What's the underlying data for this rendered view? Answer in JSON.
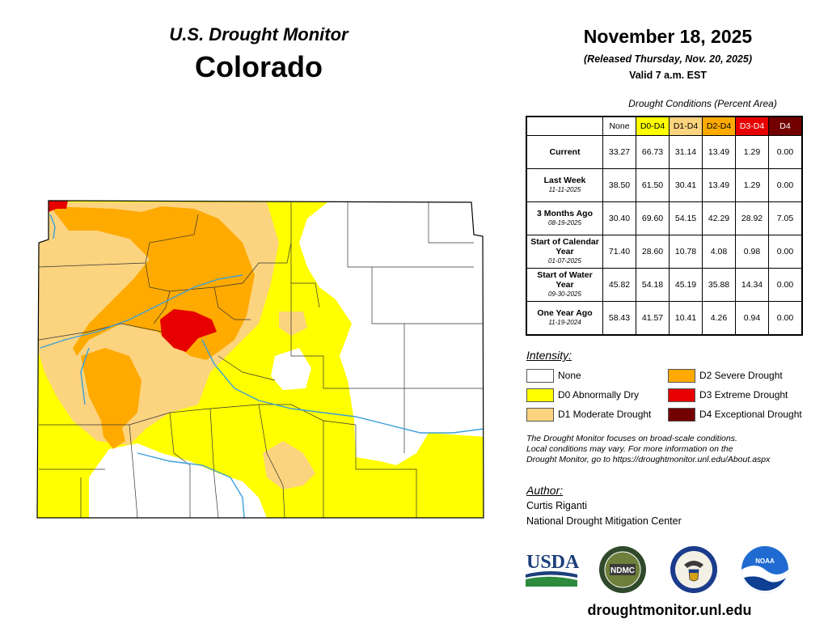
{
  "header": {
    "title_line1": "U.S. Drought Monitor",
    "title_line2": "Colorado",
    "date": "November 18, 2025",
    "released": "(Released Thursday, Nov. 20, 2025)",
    "valid": "Valid 7 a.m. EST"
  },
  "table": {
    "caption": "Drought Conditions (Percent Area)",
    "columns": [
      "None",
      "D0-D4",
      "D1-D4",
      "D2-D4",
      "D3-D4",
      "D4"
    ],
    "rows": [
      {
        "label": "Current",
        "date": "",
        "values": [
          "33.27",
          "66.73",
          "31.14",
          "13.49",
          "1.29",
          "0.00"
        ]
      },
      {
        "label": "Last Week",
        "date": "11-11-2025",
        "values": [
          "38.50",
          "61.50",
          "30.41",
          "13.49",
          "1.29",
          "0.00"
        ]
      },
      {
        "label": "3 Months Ago",
        "date": "08-19-2025",
        "values": [
          "30.40",
          "69.60",
          "54.15",
          "42.29",
          "28.92",
          "7.05"
        ]
      },
      {
        "label": "Start of Calendar Year",
        "date": "01-07-2025",
        "values": [
          "71.40",
          "28.60",
          "10.78",
          "4.08",
          "0.98",
          "0.00"
        ]
      },
      {
        "label": "Start of Water Year",
        "date": "09-30-2025",
        "values": [
          "45.82",
          "54.18",
          "45.19",
          "35.88",
          "14.34",
          "0.00"
        ]
      },
      {
        "label": "One Year Ago",
        "date": "11-19-2024",
        "values": [
          "58.43",
          "41.57",
          "10.41",
          "4.26",
          "0.94",
          "0.00"
        ]
      }
    ]
  },
  "legend": {
    "heading": "Intensity:",
    "items": [
      {
        "label": "None",
        "color": "#ffffff"
      },
      {
        "label": "D0 Abnormally Dry",
        "color": "#ffff00"
      },
      {
        "label": "D1 Moderate Drought",
        "color": "#fcd37f"
      },
      {
        "label": "D2 Severe Drought",
        "color": "#ffaa00"
      },
      {
        "label": "D3 Extreme Drought",
        "color": "#e60000"
      },
      {
        "label": "D4 Exceptional Drought",
        "color": "#730000"
      }
    ]
  },
  "note": {
    "line1": "The Drought Monitor focuses on broad-scale conditions.",
    "line2": "Local conditions may vary. For more information on the",
    "line3": "Drought Monitor, go to https://droughtmonitor.unl.edu/About.aspx"
  },
  "author": {
    "heading": "Author:",
    "name": "Curtis Riganti",
    "org": "National Drought Mitigation Center"
  },
  "logos": {
    "usda": "USDA",
    "ndmc": "NDMC",
    "noaa": "NOAA"
  },
  "footer": {
    "site": "droughtmonitor.unl.edu"
  }
}
